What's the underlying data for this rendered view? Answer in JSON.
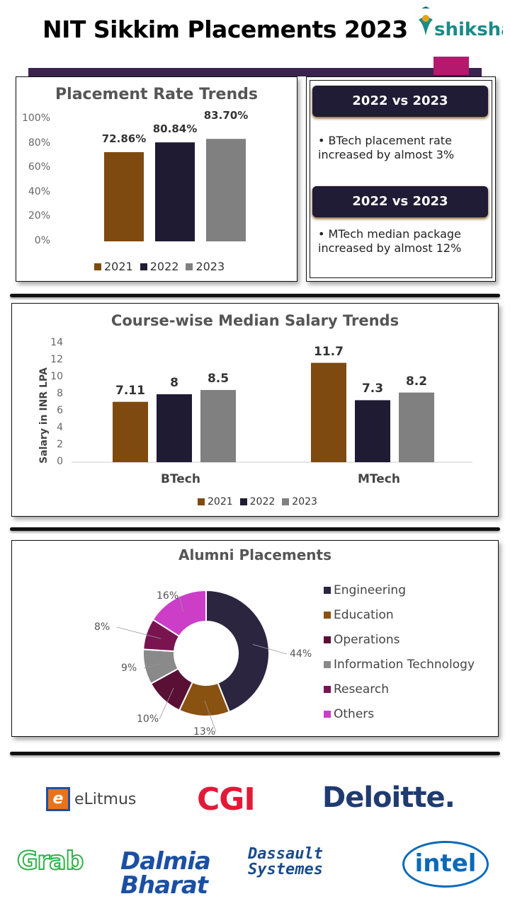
{
  "header": {
    "title": "NIT Sikkim Placements 2023",
    "brand": "shiksha"
  },
  "insights": [
    {
      "heading": "2022 vs 2023",
      "text": "BTech placement rate increased by almost 3%"
    },
    {
      "heading": "2022 vs 2023",
      "text": "MTech median package increased by almost 12%"
    }
  ],
  "colors": {
    "2021": "#7e4a10",
    "2022": "#1f1b33",
    "2023": "#808080"
  },
  "chart_data": [
    {
      "type": "bar",
      "title": "Placement Rate Trends",
      "categories": [
        "2021",
        "2022",
        "2023"
      ],
      "values": [
        72.86,
        80.84,
        83.7
      ],
      "labels": [
        "72.86%",
        "80.84%",
        "83.70%"
      ],
      "ylim": [
        0,
        100
      ],
      "yticks": [
        "0%",
        "20%",
        "40%",
        "60%",
        "80%",
        "100%"
      ],
      "legend": [
        "2021",
        "2022",
        "2023"
      ],
      "legend_position": "bottom"
    },
    {
      "type": "bar",
      "title": "Course-wise Median Salary Trends",
      "ylabel": "Salary in INR LPA",
      "categories": [
        "BTech",
        "MTech"
      ],
      "series": [
        {
          "name": "2021",
          "values": [
            7.11,
            11.7
          ]
        },
        {
          "name": "2022",
          "values": [
            8,
            7.3
          ]
        },
        {
          "name": "2023",
          "values": [
            8.5,
            8.2
          ]
        }
      ],
      "labels": [
        [
          "7.11",
          "8",
          "8.5"
        ],
        [
          "11.7",
          "7.3",
          "8.2"
        ]
      ],
      "ylim": [
        0,
        14
      ],
      "yticks": [
        "0",
        "2",
        "4",
        "6",
        "8",
        "10",
        "12",
        "14"
      ],
      "legend_position": "bottom"
    },
    {
      "type": "pie",
      "title": "Alumni Placements",
      "donut": true,
      "categories": [
        "Engineering",
        "Education",
        "Operations",
        "Information Technology",
        "Research",
        "Others"
      ],
      "values": [
        44,
        13,
        10,
        9,
        8,
        16
      ],
      "labels": [
        "44%",
        "13%",
        "10%",
        "9%",
        "8%",
        "16%"
      ],
      "colors": [
        "#2b2540",
        "#8a5210",
        "#5a0f35",
        "#8a8a8a",
        "#7a1450",
        "#cc3ec8"
      ],
      "legend_position": "right"
    }
  ],
  "recruiters": [
    "eLitmus",
    "CGI",
    "Deloitte.",
    "Grab",
    "Dalmia Bharat",
    "Dassault Systemes",
    "intel"
  ]
}
